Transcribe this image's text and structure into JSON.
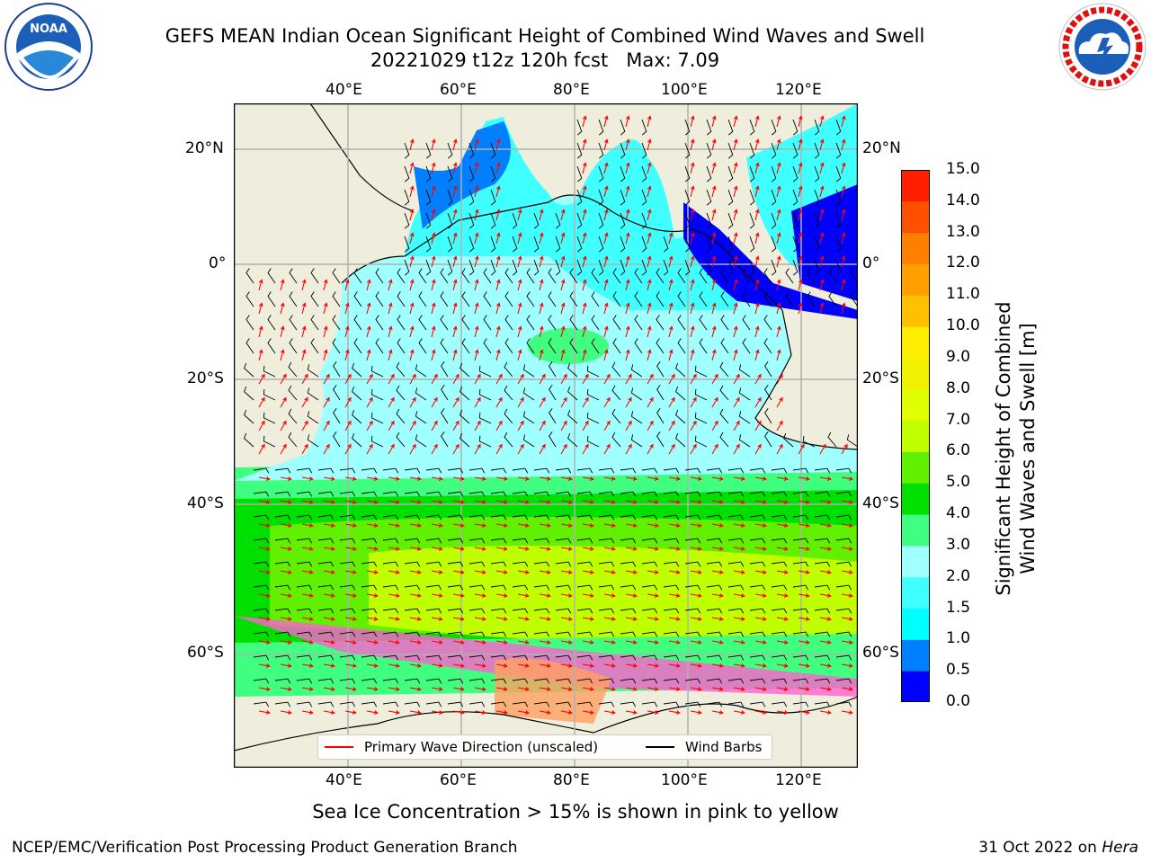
{
  "header": {
    "title_line1": "GEFS MEAN Indian Ocean Significant Height of Combined Wind Waves and Swell",
    "title_line2": "20221029 t12z 120h fcst   Max: 7.09"
  },
  "logos": {
    "left_text": "NOAA",
    "right_text": "NATIONAL WEATHER SERVICE"
  },
  "map": {
    "lon_labels_top": [
      "40°E",
      "60°E",
      "80°E",
      "100°E",
      "120°E"
    ],
    "lon_labels_bottom": [
      "40°E",
      "60°E",
      "80°E",
      "100°E",
      "120°E"
    ],
    "lat_labels_left": [
      "20°N",
      "0°",
      "20°S",
      "40°S",
      "60°S"
    ],
    "lat_labels_right": [
      "20°N",
      "0°",
      "20°S",
      "40°S",
      "60°S"
    ]
  },
  "legend": {
    "wave_label": "Primary Wave Direction (unscaled)",
    "wind_label": "Wind Barbs",
    "wave_color": "#ff0000",
    "wind_color": "#000000"
  },
  "colorbar": {
    "label": "Significant Height of Combined\nWind Waves and Swell [m]",
    "ticks": [
      "0.0",
      "0.5",
      "1.0",
      "1.5",
      "2.0",
      "3.0",
      "4.0",
      "5.0",
      "6.0",
      "7.0",
      "8.0",
      "9.0",
      "10.0",
      "11.0",
      "12.0",
      "13.0",
      "14.0",
      "15.0"
    ],
    "colors": [
      "#0000ff",
      "#0080ff",
      "#00ffff",
      "#40ffff",
      "#a0ffff",
      "#40ff80",
      "#00e000",
      "#60f000",
      "#c0ff00",
      "#e0ff00",
      "#f0f000",
      "#ffee00",
      "#ffc000",
      "#ffa000",
      "#ff8000",
      "#ff5000",
      "#ff2000"
    ]
  },
  "subtitle": "Sea Ice Concentration > 15% is shown in pink to yellow",
  "footer": {
    "left": "NCEP/EMC/Verification Post Processing Product Generation Branch",
    "right_date": "31 Oct 2022 on ",
    "right_host": "Hera"
  }
}
